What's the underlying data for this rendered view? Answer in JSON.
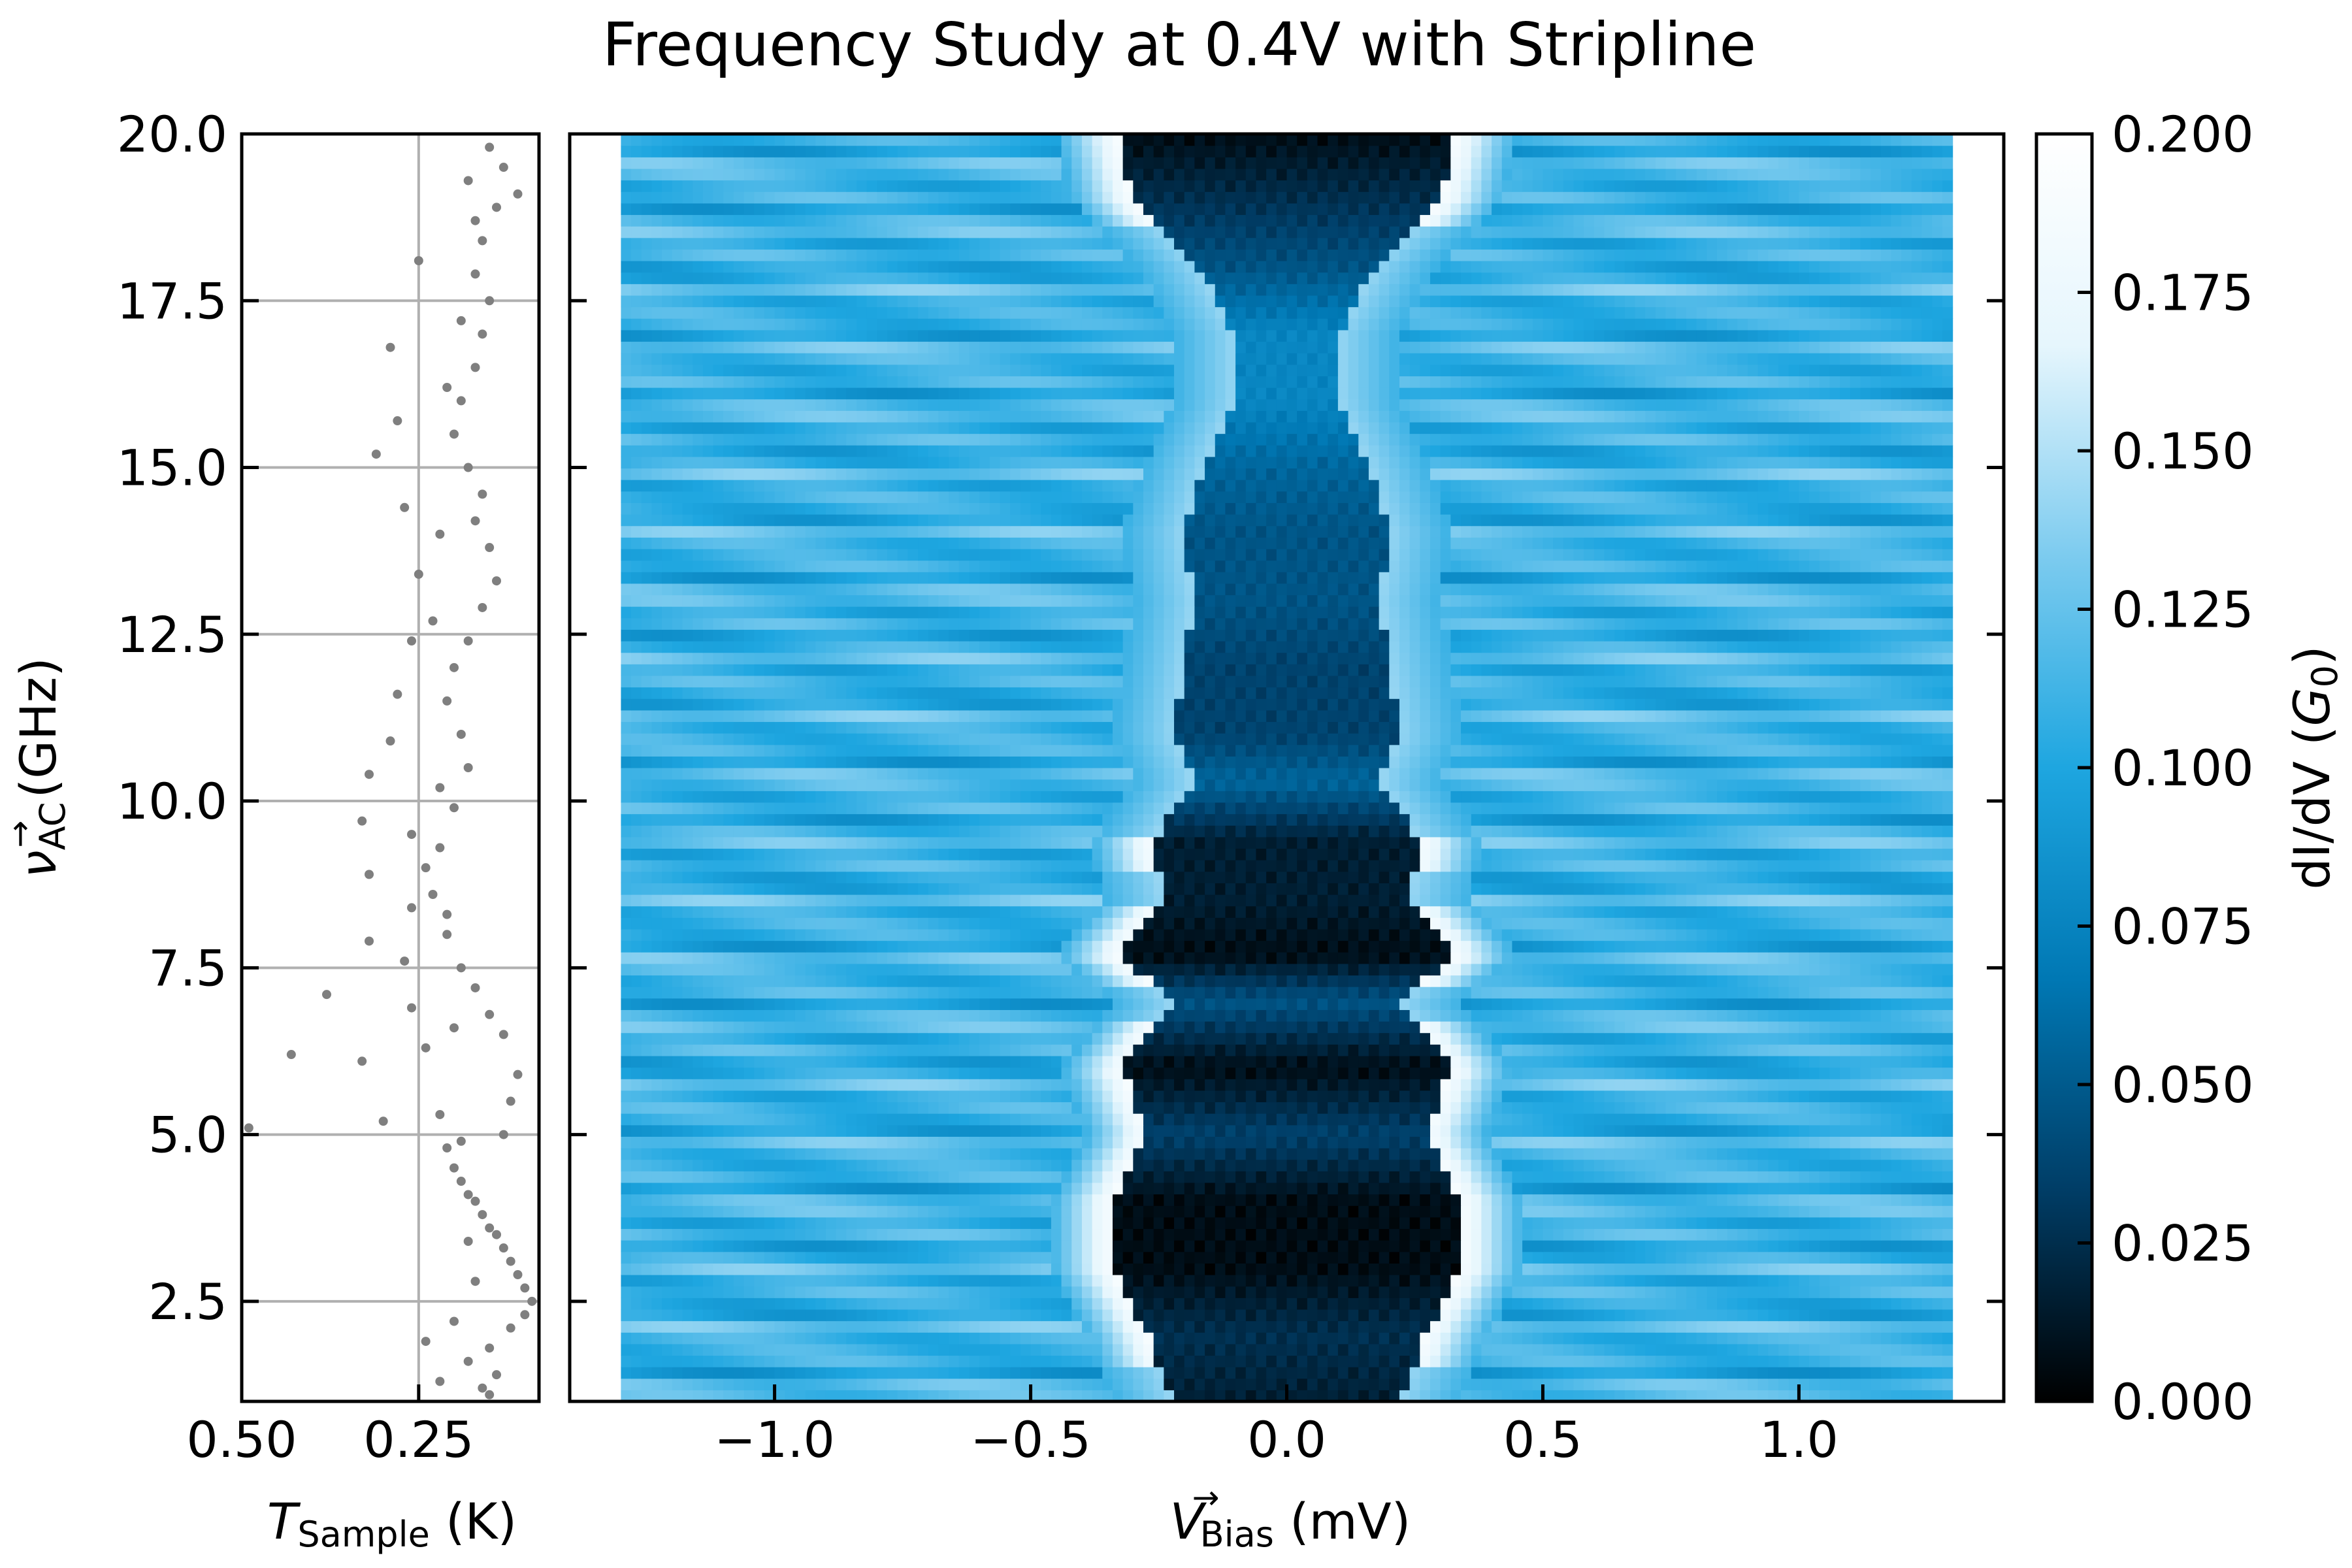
{
  "chart_data": [
    {
      "type": "scatter",
      "panel": "temperature",
      "xlabel": "T",
      "xlabel_sub": "Sample",
      "xlabel_unit": " (K)",
      "ylabel": "ν",
      "ylabel_sub": "AC",
      "ylabel_sup": "→",
      "ylabel_unit": " (GHz)",
      "xlim": [
        0.5,
        0.08
      ],
      "ylim": [
        1.0,
        20.0
      ],
      "xticks": [
        "0.50",
        "0.25"
      ],
      "xtick_values": [
        0.5,
        0.25
      ],
      "yticks": [
        "2.5",
        "5.0",
        "7.5",
        "10.0",
        "12.5",
        "15.0",
        "17.5",
        "20.0"
      ],
      "ytick_values": [
        2.5,
        5.0,
        7.5,
        10.0,
        12.5,
        15.0,
        17.5,
        20.0
      ],
      "grid": true,
      "marker_color": "#7f7f7f",
      "points": [
        {
          "x": 0.49,
          "y": 5.1
        },
        {
          "x": 0.43,
          "y": 6.2
        },
        {
          "x": 0.38,
          "y": 7.1
        },
        {
          "x": 0.33,
          "y": 6.1
        },
        {
          "x": 0.3,
          "y": 5.2
        },
        {
          "x": 0.26,
          "y": 6.9
        },
        {
          "x": 0.32,
          "y": 7.9
        },
        {
          "x": 0.32,
          "y": 8.9
        },
        {
          "x": 0.33,
          "y": 9.7
        },
        {
          "x": 0.32,
          "y": 10.4
        },
        {
          "x": 0.29,
          "y": 10.9
        },
        {
          "x": 0.28,
          "y": 11.6
        },
        {
          "x": 0.26,
          "y": 12.4
        },
        {
          "x": 0.25,
          "y": 13.4
        },
        {
          "x": 0.31,
          "y": 15.2
        },
        {
          "x": 0.29,
          "y": 16.8
        },
        {
          "x": 0.25,
          "y": 18.1
        },
        {
          "x": 0.28,
          "y": 15.7
        },
        {
          "x": 0.27,
          "y": 14.4
        },
        {
          "x": 0.26,
          "y": 9.5
        },
        {
          "x": 0.26,
          "y": 8.4
        },
        {
          "x": 0.27,
          "y": 7.6
        },
        {
          "x": 0.24,
          "y": 6.3
        },
        {
          "x": 0.22,
          "y": 5.3
        },
        {
          "x": 0.21,
          "y": 4.8
        },
        {
          "x": 0.2,
          "y": 4.5
        },
        {
          "x": 0.19,
          "y": 4.3
        },
        {
          "x": 0.18,
          "y": 4.1
        },
        {
          "x": 0.17,
          "y": 4.0
        },
        {
          "x": 0.16,
          "y": 3.8
        },
        {
          "x": 0.15,
          "y": 3.6
        },
        {
          "x": 0.14,
          "y": 3.5
        },
        {
          "x": 0.13,
          "y": 3.3
        },
        {
          "x": 0.12,
          "y": 3.1
        },
        {
          "x": 0.11,
          "y": 2.9
        },
        {
          "x": 0.1,
          "y": 2.7
        },
        {
          "x": 0.09,
          "y": 2.5
        },
        {
          "x": 0.1,
          "y": 2.3
        },
        {
          "x": 0.12,
          "y": 2.1
        },
        {
          "x": 0.15,
          "y": 1.8
        },
        {
          "x": 0.18,
          "y": 1.6
        },
        {
          "x": 0.14,
          "y": 1.4
        },
        {
          "x": 0.16,
          "y": 1.2
        },
        {
          "x": 0.22,
          "y": 1.3
        },
        {
          "x": 0.24,
          "y": 1.9
        },
        {
          "x": 0.2,
          "y": 2.2
        },
        {
          "x": 0.13,
          "y": 5.0
        },
        {
          "x": 0.12,
          "y": 5.5
        },
        {
          "x": 0.11,
          "y": 5.9
        },
        {
          "x": 0.13,
          "y": 6.5
        },
        {
          "x": 0.15,
          "y": 6.8
        },
        {
          "x": 0.17,
          "y": 7.2
        },
        {
          "x": 0.19,
          "y": 7.5
        },
        {
          "x": 0.21,
          "y": 8.0
        },
        {
          "x": 0.23,
          "y": 8.6
        },
        {
          "x": 0.24,
          "y": 9.0
        },
        {
          "x": 0.22,
          "y": 9.3
        },
        {
          "x": 0.2,
          "y": 9.9
        },
        {
          "x": 0.18,
          "y": 10.5
        },
        {
          "x": 0.19,
          "y": 11.0
        },
        {
          "x": 0.21,
          "y": 11.5
        },
        {
          "x": 0.2,
          "y": 12.0
        },
        {
          "x": 0.18,
          "y": 12.4
        },
        {
          "x": 0.16,
          "y": 12.9
        },
        {
          "x": 0.14,
          "y": 13.3
        },
        {
          "x": 0.15,
          "y": 13.8
        },
        {
          "x": 0.17,
          "y": 14.2
        },
        {
          "x": 0.16,
          "y": 14.6
        },
        {
          "x": 0.18,
          "y": 15.0
        },
        {
          "x": 0.2,
          "y": 15.5
        },
        {
          "x": 0.19,
          "y": 16.0
        },
        {
          "x": 0.17,
          "y": 16.5
        },
        {
          "x": 0.16,
          "y": 17.0
        },
        {
          "x": 0.15,
          "y": 17.5
        },
        {
          "x": 0.17,
          "y": 17.9
        },
        {
          "x": 0.16,
          "y": 18.4
        },
        {
          "x": 0.14,
          "y": 18.9
        },
        {
          "x": 0.11,
          "y": 19.1
        },
        {
          "x": 0.13,
          "y": 19.5
        },
        {
          "x": 0.15,
          "y": 19.8
        },
        {
          "x": 0.18,
          "y": 19.3
        },
        {
          "x": 0.17,
          "y": 18.7
        },
        {
          "x": 0.19,
          "y": 17.2
        },
        {
          "x": 0.21,
          "y": 16.2
        },
        {
          "x": 0.22,
          "y": 14.0
        },
        {
          "x": 0.23,
          "y": 12.7
        },
        {
          "x": 0.22,
          "y": 10.2
        },
        {
          "x": 0.21,
          "y": 8.3
        },
        {
          "x": 0.2,
          "y": 6.6
        },
        {
          "x": 0.19,
          "y": 4.9
        },
        {
          "x": 0.18,
          "y": 3.4
        },
        {
          "x": 0.17,
          "y": 2.8
        },
        {
          "x": 0.15,
          "y": 1.1
        }
      ]
    },
    {
      "type": "heatmap",
      "panel": "main",
      "title": "Frequency Study at 0.4V with Stripline",
      "xlabel": "V",
      "xlabel_sub": "Bias",
      "xlabel_sup": "→",
      "xlabel_unit": " (mV)",
      "xlim": [
        -1.4,
        1.4
      ],
      "ylim": [
        1.0,
        20.0
      ],
      "data_x_range": [
        -1.3,
        1.3
      ],
      "xticks": [
        "−1.0",
        "−0.5",
        "0.0",
        "0.5",
        "1.0"
      ],
      "xtick_values": [
        -1.0,
        -0.5,
        0.0,
        0.5,
        1.0
      ],
      "yticks": [
        "2.5",
        "5.0",
        "7.5",
        "10.0",
        "12.5",
        "15.0",
        "17.5",
        "20.0"
      ],
      "ytick_values": [
        2.5,
        5.0,
        7.5,
        10.0,
        12.5,
        15.0,
        17.5,
        20.0
      ],
      "colormap": "black-blue-white",
      "background_level": 0.11,
      "notes_visible": "dark low-conductance region centered at 0 mV whose half-width varies with frequency; bright peaks flank the dark region",
      "gap_profile": [
        {
          "freq": 1.0,
          "half_width": 0.22,
          "depth": 0.01
        },
        {
          "freq": 2.0,
          "half_width": 0.27,
          "depth": 0.02
        },
        {
          "freq": 3.0,
          "half_width": 0.34,
          "depth": 0.0
        },
        {
          "freq": 4.0,
          "half_width": 0.34,
          "depth": 0.0
        },
        {
          "freq": 5.0,
          "half_width": 0.27,
          "depth": 0.03
        },
        {
          "freq": 6.0,
          "half_width": 0.32,
          "depth": 0.0
        },
        {
          "freq": 7.0,
          "half_width": 0.22,
          "depth": 0.04
        },
        {
          "freq": 7.7,
          "half_width": 0.33,
          "depth": 0.0
        },
        {
          "freq": 8.5,
          "half_width": 0.24,
          "depth": 0.01
        },
        {
          "freq": 9.4,
          "half_width": 0.26,
          "depth": 0.01
        },
        {
          "freq": 10.3,
          "half_width": 0.18,
          "depth": 0.05
        },
        {
          "freq": 11.0,
          "half_width": 0.22,
          "depth": 0.03
        },
        {
          "freq": 12.0,
          "half_width": 0.2,
          "depth": 0.03
        },
        {
          "freq": 13.0,
          "half_width": 0.18,
          "depth": 0.04
        },
        {
          "freq": 14.0,
          "half_width": 0.2,
          "depth": 0.04
        },
        {
          "freq": 15.0,
          "half_width": 0.16,
          "depth": 0.05
        },
        {
          "freq": 16.0,
          "half_width": 0.1,
          "depth": 0.07
        },
        {
          "freq": 17.0,
          "half_width": 0.1,
          "depth": 0.07
        },
        {
          "freq": 18.0,
          "half_width": 0.17,
          "depth": 0.04
        },
        {
          "freq": 19.0,
          "half_width": 0.3,
          "depth": 0.02
        },
        {
          "freq": 20.0,
          "half_width": 0.33,
          "depth": 0.0
        }
      ]
    }
  ],
  "colorbar": {
    "label": "dI/dV",
    "label_unit_symbol": "G",
    "label_unit_sub": "0",
    "range": [
      0.0,
      0.2
    ],
    "ticks": [
      "0.000",
      "0.025",
      "0.050",
      "0.075",
      "0.100",
      "0.125",
      "0.150",
      "0.175",
      "0.200"
    ],
    "tick_values": [
      0.0,
      0.025,
      0.05,
      0.075,
      0.1,
      0.125,
      0.15,
      0.175,
      0.2
    ],
    "colors": [
      "#000000",
      "#003d66",
      "#0078b4",
      "#1ea6e0",
      "#7ccbef",
      "#e6f6fd",
      "#ffffff"
    ]
  }
}
